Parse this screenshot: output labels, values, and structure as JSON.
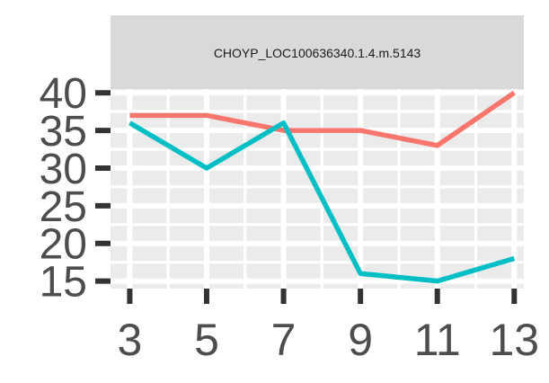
{
  "chart_data": {
    "type": "line",
    "title": "",
    "facet_label": "CHOYP_LOC100636340.1.4.m.5143",
    "xlabel": "",
    "ylabel": "",
    "x": [
      3,
      5,
      7,
      9,
      11,
      13
    ],
    "x_ticks": [
      "3",
      "5",
      "7",
      "9",
      "11",
      "13"
    ],
    "y_ticks": [
      "15",
      "20",
      "25",
      "30",
      "35",
      "40"
    ],
    "xlim": [
      2.5,
      13.25
    ],
    "ylim": [
      14,
      40.5
    ],
    "grid": true,
    "legend": "none",
    "series": [
      {
        "color": "#F8766D",
        "values": [
          37,
          37,
          35,
          35,
          33,
          40
        ]
      },
      {
        "color": "#00BFC4",
        "values": [
          36,
          30,
          36,
          16,
          15,
          18
        ]
      }
    ]
  },
  "colors": {
    "panel_background": "#EBEBEB",
    "strip_background": "#D9D9D9",
    "grid": "#FFFFFF",
    "axis_text": "#4D4D4D",
    "ticks": "#333333"
  }
}
